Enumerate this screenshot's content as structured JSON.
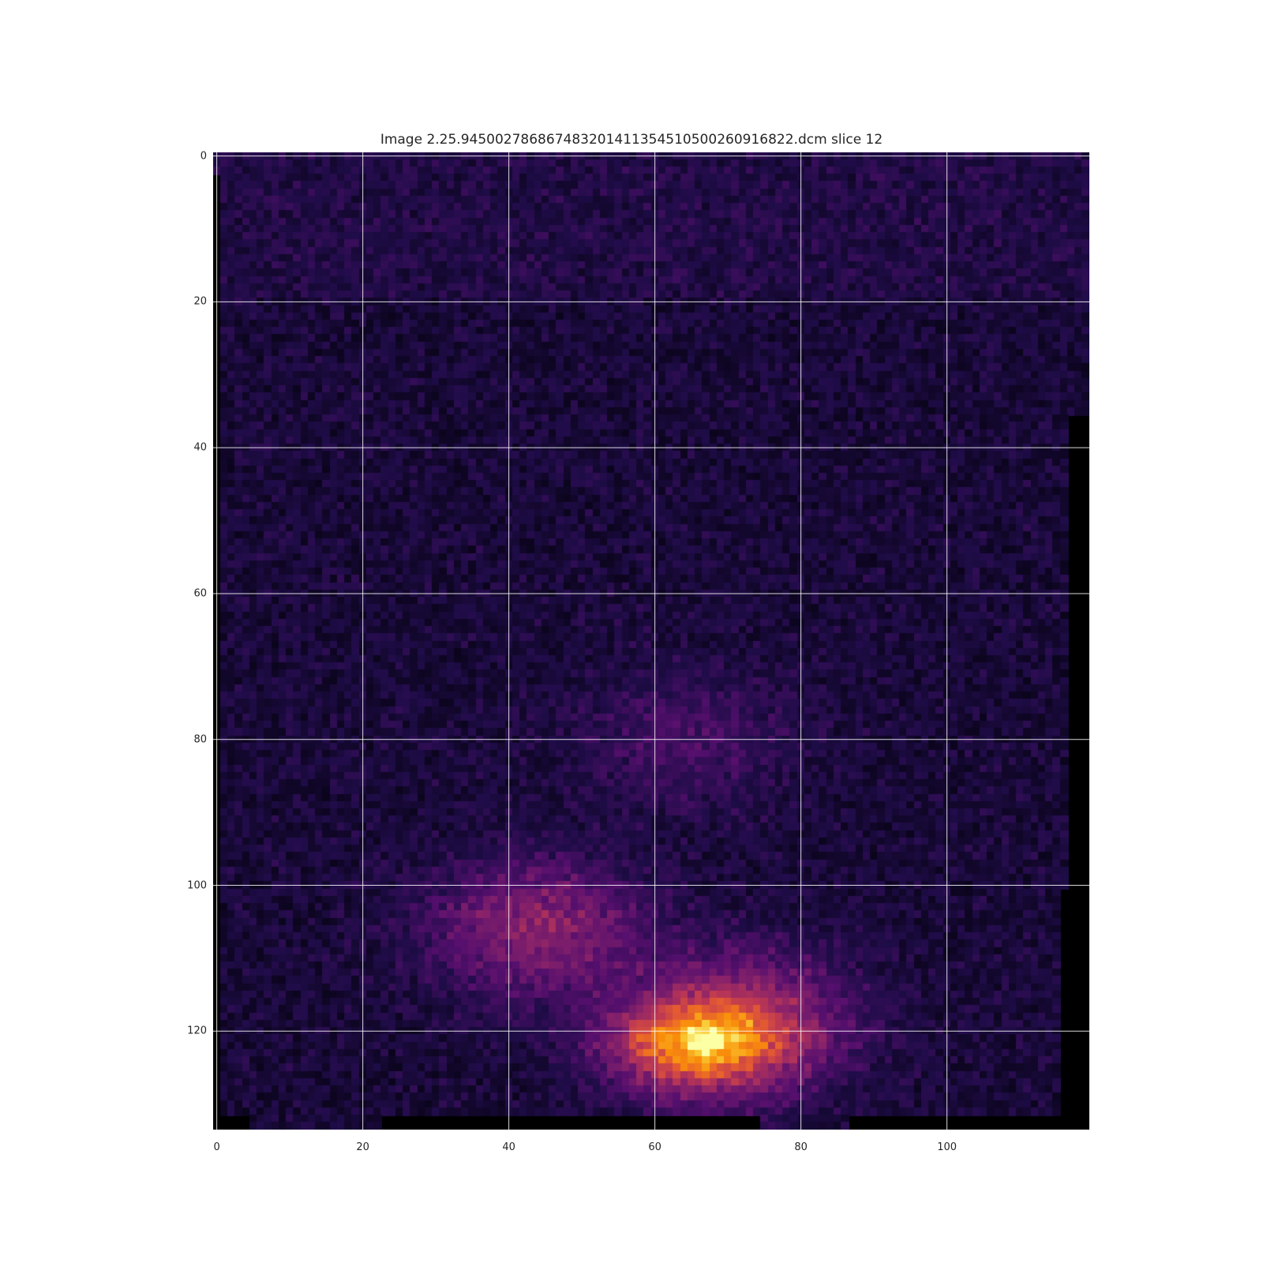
{
  "figure": {
    "title": "Image 2.25.945002786867483201411354510500260916822.dcm slice 12"
  },
  "chart_data": {
    "type": "heatmap",
    "title": "Image 2.25.945002786867483201411354510500260916822.dcm slice 12",
    "colormap": "inferno",
    "x_ticks": [
      "0",
      "20",
      "40",
      "60",
      "80",
      "100"
    ],
    "y_ticks": [
      "0",
      "20",
      "40",
      "60",
      "80",
      "100",
      "120"
    ],
    "xlim": [
      -0.5,
      119.5
    ],
    "ylim": [
      133.5,
      -0.5
    ],
    "grid": true,
    "grid_color": "#ffffff",
    "image_shape": [
      134,
      120
    ],
    "hotspots": [
      {
        "x": 44,
        "y": 106,
        "level": 0.62
      },
      {
        "x": 72,
        "y": 119,
        "level": 0.78
      },
      {
        "x": 65,
        "y": 122,
        "level": 1.0
      },
      {
        "x": 64,
        "y": 80,
        "level": 0.25
      }
    ],
    "background_level": 0.12
  }
}
